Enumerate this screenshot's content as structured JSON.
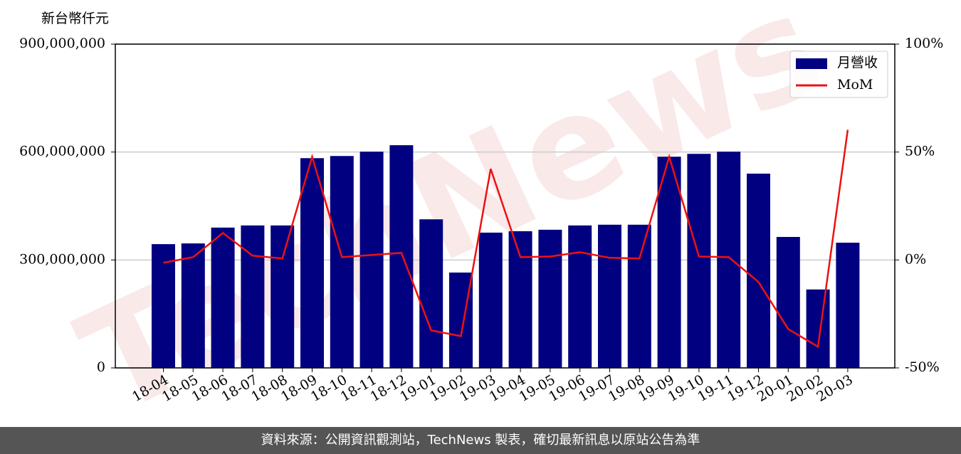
{
  "chart_data": {
    "type": "bar_line",
    "y_label": "新台幣仟元",
    "categories": [
      "18-04",
      "18-05",
      "18-06",
      "18-07",
      "18-08",
      "18-09",
      "18-10",
      "18-11",
      "18-12",
      "19-01",
      "19-02",
      "19-03",
      "19-04",
      "19-05",
      "19-06",
      "19-07",
      "19-08",
      "19-09",
      "19-10",
      "19-11",
      "19-12",
      "20-01",
      "20-02",
      "20-03"
    ],
    "series": [
      {
        "name": "月營收",
        "type": "bar",
        "color": "#000080",
        "values": [
          344000000,
          346000000,
          390000000,
          396000000,
          396000000,
          583000000,
          589000000,
          601000000,
          619000000,
          413000000,
          265000000,
          376000000,
          380000000,
          384000000,
          396000000,
          398000000,
          398000000,
          587000000,
          595000000,
          601000000,
          540000000,
          364000000,
          218000000,
          348000000
        ]
      },
      {
        "name": "MoM",
        "type": "line",
        "axis": "y2",
        "color": "#ee1111",
        "values": [
          -1.3,
          1.3,
          12.5,
          2.0,
          0.7,
          47.8,
          1.3,
          2.3,
          3.3,
          -32.6,
          -35.3,
          42.2,
          1.3,
          1.6,
          3.6,
          1.0,
          0.7,
          47.8,
          1.6,
          1.3,
          -10.2,
          -32.0,
          -40.2,
          60.3
        ]
      }
    ],
    "ylim": [
      0,
      900000000
    ],
    "yticks": [
      0,
      {
        "value": 300000000,
        "label": "300,000,000"
      },
      {
        "value": 600000000,
        "label": "600,000,000"
      },
      {
        "value": 900000000,
        "label": "900,000,000"
      }
    ],
    "y2lim": [
      -50,
      100
    ],
    "y2ticks": [
      {
        "value": -50,
        "label": "-50%"
      },
      {
        "value": 0,
        "label": "0%"
      },
      {
        "value": 50,
        "label": "50%"
      },
      {
        "value": 100,
        "label": "100%"
      }
    ],
    "grid": true,
    "legend": "upper right"
  },
  "watermark": "TechNews",
  "footer": "資料來源：公開資訊觀測站，TechNews 製表，確切最新訊息以原站公告為準"
}
